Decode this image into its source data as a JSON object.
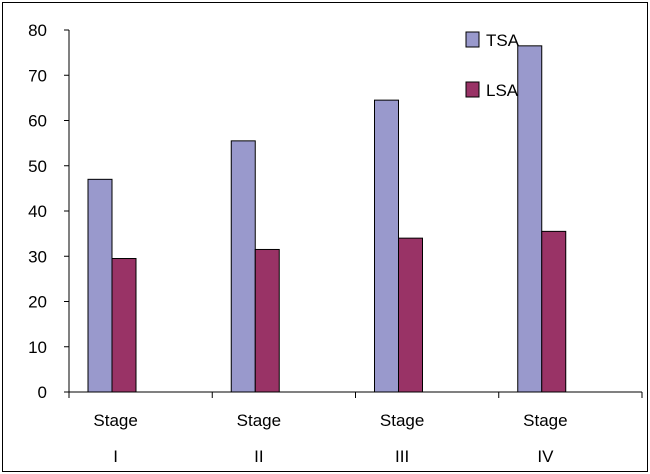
{
  "chart_data": {
    "type": "bar",
    "categories": [
      [
        "Stage",
        "I"
      ],
      [
        "Stage",
        "II"
      ],
      [
        "Stage",
        "III"
      ],
      [
        "Stage",
        "IV"
      ]
    ],
    "series": [
      {
        "name": "TSA",
        "values": [
          47,
          55.5,
          64.5,
          76.5
        ],
        "color": "#9999cc"
      },
      {
        "name": "LSA",
        "values": [
          29.5,
          31.5,
          34,
          35.5
        ],
        "color": "#993366"
      }
    ],
    "title": "",
    "xlabel": "",
    "ylabel": "",
    "ylim": [
      0,
      80
    ],
    "yticks": [
      "0",
      "10",
      "20",
      "30",
      "40",
      "50",
      "60",
      "70",
      "80"
    ],
    "grid": false,
    "legend": "top-right"
  }
}
